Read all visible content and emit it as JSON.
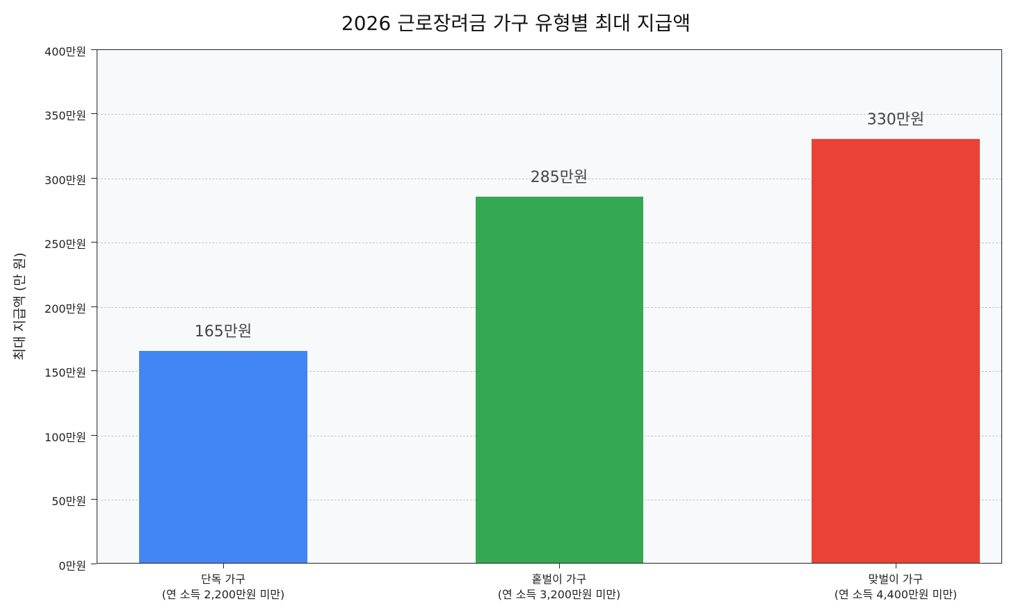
{
  "chart_data": {
    "type": "bar",
    "title": "2026 근로장려금 가구 유형별 최대 지급액",
    "xlabel": "",
    "ylabel": "최대 지급액 (만 원)",
    "categories": [
      "단독 가구\n(연 소득 2,200만원 미만)",
      "홑벌이 가구\n(연 소득 3,200만원 미만)",
      "맞벌이 가구\n(연 소득 4,400만원 미만)"
    ],
    "values": [
      165,
      285,
      330
    ],
    "value_labels": [
      "165만원",
      "285만원",
      "330만원"
    ],
    "colors": [
      "#4285f4",
      "#34a853",
      "#ea4335"
    ],
    "ylim": [
      0,
      400
    ],
    "yticks": [
      0,
      50,
      100,
      150,
      200,
      250,
      300,
      350,
      400
    ],
    "ytick_labels": [
      "0만원",
      "50만원",
      "100만원",
      "150만원",
      "200만원",
      "250만원",
      "300만원",
      "350만원",
      "400만원"
    ],
    "grid": "y, dashed",
    "legend": null
  },
  "title": "2026 근로장려금 가구 유형별 최대 지급액",
  "ylabel": "최대 지급액 (만 원)",
  "yticks": [
    "0만원",
    "50만원",
    "100만원",
    "150만원",
    "200만원",
    "250만원",
    "300만원",
    "350만원",
    "400만원"
  ],
  "bars": [
    {
      "name": "단독 가구",
      "sub": "(연 소득 2,200만원 미만)",
      "value": 165,
      "label": "165만원",
      "color": "#4285f4"
    },
    {
      "name": "홑벌이 가구",
      "sub": "(연 소득 3,200만원 미만)",
      "value": 285,
      "label": "285만원",
      "color": "#34a853"
    },
    {
      "name": "맞벌이 가구",
      "sub": "(연 소득 4,400만원 미만)",
      "value": 330,
      "label": "330만원",
      "color": "#ea4335"
    }
  ]
}
